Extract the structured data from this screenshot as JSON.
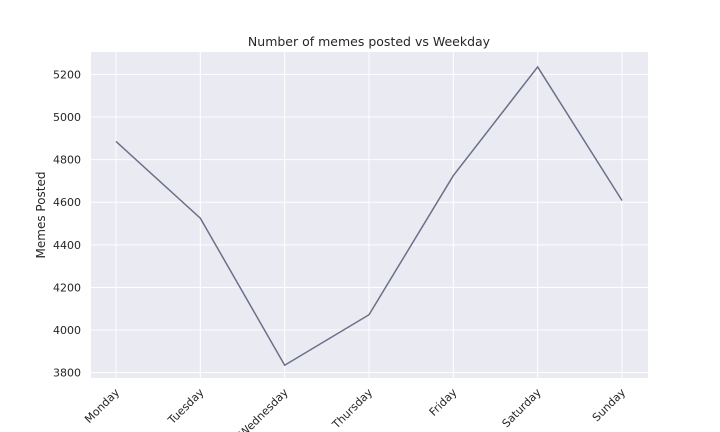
{
  "chart_data": {
    "type": "line",
    "title": "Number of memes posted vs Weekday",
    "xlabel": "",
    "ylabel": "Memes Posted",
    "categories": [
      "Monday",
      "Tuesday",
      "Wednesday",
      "Thursday",
      "Friday",
      "Saturday",
      "Sunday"
    ],
    "values": [
      4885,
      4525,
      3835,
      4072,
      4725,
      5235,
      4608
    ],
    "ylim": [
      3775,
      5305
    ],
    "yticks": [
      3800,
      4000,
      4200,
      4400,
      4600,
      4800,
      5000,
      5200
    ],
    "grid": true,
    "line_color": "#6b7088",
    "background_color": "#eaeaf2",
    "grid_color": "#ffffff"
  }
}
